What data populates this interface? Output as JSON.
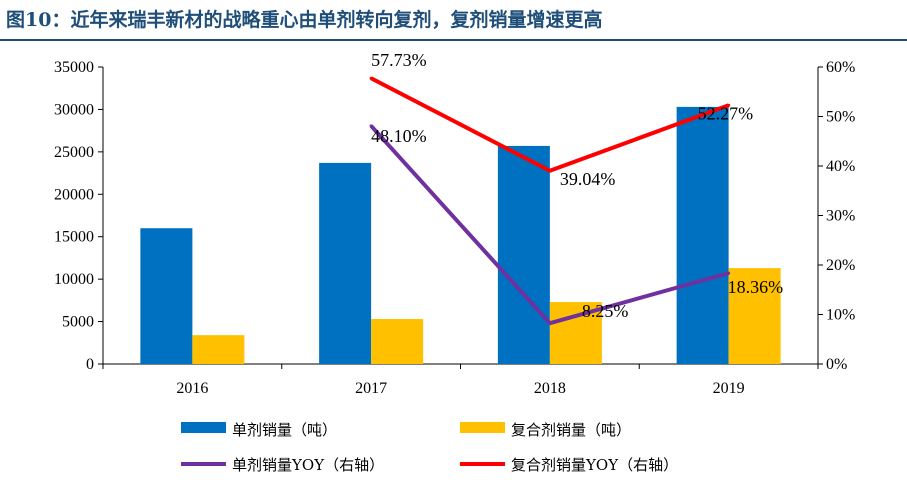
{
  "figure": {
    "title": "图10：近年来瑞丰新材的战略重心由单剂转向复剂，复剂销量增速更高"
  },
  "chart_data": {
    "type": "bar",
    "categories": [
      "2016",
      "2017",
      "2018",
      "2019"
    ],
    "series": [
      {
        "name": "单剂销量（吨）",
        "type": "bar",
        "axis": "left",
        "color": "#0070c0",
        "values": [
          16000,
          23700,
          25700,
          30300
        ]
      },
      {
        "name": "复合剂销量（吨）",
        "type": "bar",
        "axis": "left",
        "color": "#ffc000",
        "values": [
          3400,
          5300,
          7300,
          11300
        ]
      },
      {
        "name": "单剂销量YOY（右轴）",
        "type": "line",
        "axis": "right",
        "color": "#7030a0",
        "values": [
          null,
          48.1,
          8.25,
          18.36
        ],
        "labels": [
          "",
          "48.10%",
          "8.25%",
          "18.36%"
        ]
      },
      {
        "name": "复合剂销量YOY（右轴）",
        "type": "line",
        "axis": "right",
        "color": "#ff0000",
        "values": [
          null,
          57.73,
          39.04,
          52.27
        ],
        "labels": [
          "",
          "57.73%",
          "39.04%",
          "52.27%"
        ]
      }
    ],
    "y_left": {
      "min": 0,
      "max": 35000,
      "step": 5000,
      "ticks": [
        "0",
        "5000",
        "10000",
        "15000",
        "20000",
        "25000",
        "30000",
        "35000"
      ]
    },
    "y_right": {
      "min": 0,
      "max": 60,
      "step": 10,
      "ticks": [
        "0%",
        "10%",
        "20%",
        "30%",
        "40%",
        "50%",
        "60%"
      ]
    },
    "legend": "bottom",
    "grid": false
  }
}
